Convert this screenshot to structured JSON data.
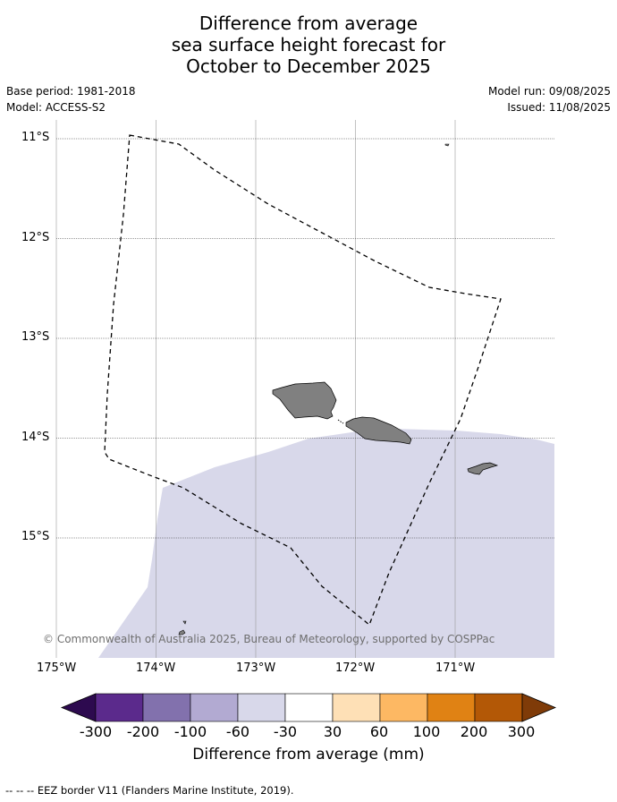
{
  "title": {
    "line1": "Difference from average",
    "line2": "sea surface height forecast for",
    "line3": "October to December 2025"
  },
  "meta": {
    "base_period": "Base period: 1981-2018",
    "model": "Model: ACCESS-S2",
    "model_run": "Model run: 09/08/2025",
    "issued": "Issued: 11/08/2025"
  },
  "map": {
    "lat_labels": [
      "11°S",
      "12°S",
      "13°S",
      "14°S",
      "15°S"
    ],
    "lon_labels": [
      "175°W",
      "174°W",
      "173°W",
      "172°W",
      "171°W"
    ],
    "ocean_color": "#ffffff",
    "anomaly_fill_color": "#d8d8ea",
    "land_color": "#808080",
    "copyright": "© Commonwealth of Australia 2025, Bureau of Meteorology, supported by COSPPac"
  },
  "colorbar": {
    "labels": [
      "-300",
      "-200",
      "-100",
      "-60",
      "-30",
      "30",
      "60",
      "100",
      "200",
      "300"
    ],
    "colors": [
      "#2d0a4f",
      "#5b2a8c",
      "#8271ad",
      "#b2aad2",
      "#d8d8ea",
      "#ffffff",
      "#fee0b6",
      "#fdb863",
      "#e08214",
      "#b35806",
      "#7f3b08"
    ],
    "title": "Difference from average (mm)"
  },
  "footer": {
    "legend_text": "--  --  -- EEZ border V11 (Flanders Marine Institute, 2019)."
  }
}
